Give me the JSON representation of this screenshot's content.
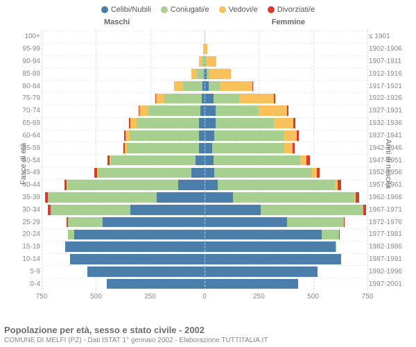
{
  "legend": [
    {
      "label": "Celibi/Nubili",
      "color": "#4b7eab"
    },
    {
      "label": "Coniugati/e",
      "color": "#a7cf8f"
    },
    {
      "label": "Vedovi/e",
      "color": "#f9c15b"
    },
    {
      "label": "Divorziati/e",
      "color": "#d83a2e"
    }
  ],
  "headers": {
    "left": "Maschi",
    "right": "Femmine"
  },
  "axis_labels": {
    "left": "Fasce di età",
    "right": "Anni di nascita"
  },
  "x_axis": {
    "max": 750,
    "ticks": [
      750,
      500,
      250,
      0,
      250,
      500,
      750
    ]
  },
  "colors": {
    "grid": "#e0e0e0",
    "background": "#ffffff",
    "center_line": "#cccccc"
  },
  "footer": {
    "title": "Popolazione per età, sesso e stato civile - 2002",
    "subtitle": "COMUNE DI MELFI (PZ) - Dati ISTAT 1° gennaio 2002 - Elaborazione TUTTITALIA.IT"
  },
  "rows": [
    {
      "age": "100+",
      "birth": "≤ 1901",
      "m": [
        0,
        0,
        1,
        0
      ],
      "f": [
        0,
        0,
        2,
        0
      ]
    },
    {
      "age": "95-99",
      "birth": "1902-1906",
      "m": [
        0,
        1,
        4,
        0
      ],
      "f": [
        0,
        0,
        12,
        0
      ]
    },
    {
      "age": "90-94",
      "birth": "1907-1911",
      "m": [
        1,
        8,
        18,
        0
      ],
      "f": [
        2,
        4,
        48,
        0
      ]
    },
    {
      "age": "85-89",
      "birth": "1912-1916",
      "m": [
        4,
        30,
        28,
        0
      ],
      "f": [
        10,
        12,
        100,
        0
      ]
    },
    {
      "age": "80-84",
      "birth": "1917-1921",
      "m": [
        10,
        90,
        40,
        0
      ],
      "f": [
        20,
        50,
        150,
        2
      ]
    },
    {
      "age": "75-79",
      "birth": "1922-1926",
      "m": [
        14,
        170,
        40,
        2
      ],
      "f": [
        40,
        120,
        160,
        4
      ]
    },
    {
      "age": "70-74",
      "birth": "1927-1931",
      "m": [
        20,
        240,
        40,
        4
      ],
      "f": [
        50,
        200,
        130,
        6
      ]
    },
    {
      "age": "65-69",
      "birth": "1932-1936",
      "m": [
        24,
        290,
        28,
        6
      ],
      "f": [
        50,
        270,
        90,
        8
      ]
    },
    {
      "age": "60-64",
      "birth": "1937-1941",
      "m": [
        24,
        320,
        20,
        6
      ],
      "f": [
        44,
        320,
        60,
        10
      ]
    },
    {
      "age": "55-59",
      "birth": "1942-1946",
      "m": [
        26,
        330,
        12,
        6
      ],
      "f": [
        36,
        330,
        40,
        10
      ]
    },
    {
      "age": "50-54",
      "birth": "1947-1951",
      "m": [
        40,
        390,
        8,
        8
      ],
      "f": [
        40,
        400,
        30,
        14
      ]
    },
    {
      "age": "45-49",
      "birth": "1952-1956",
      "m": [
        60,
        430,
        6,
        10
      ],
      "f": [
        46,
        450,
        20,
        14
      ]
    },
    {
      "age": "40-44",
      "birth": "1957-1961",
      "m": [
        120,
        510,
        4,
        12
      ],
      "f": [
        60,
        540,
        12,
        16
      ]
    },
    {
      "age": "35-39",
      "birth": "1962-1966",
      "m": [
        220,
        500,
        2,
        12
      ],
      "f": [
        130,
        560,
        6,
        16
      ]
    },
    {
      "age": "30-34",
      "birth": "1967-1971",
      "m": [
        340,
        370,
        0,
        10
      ],
      "f": [
        260,
        470,
        2,
        12
      ]
    },
    {
      "age": "25-29",
      "birth": "1972-1976",
      "m": [
        470,
        160,
        0,
        4
      ],
      "f": [
        380,
        260,
        0,
        6
      ]
    },
    {
      "age": "20-24",
      "birth": "1977-1981",
      "m": [
        600,
        30,
        0,
        0
      ],
      "f": [
        540,
        80,
        0,
        2
      ]
    },
    {
      "age": "15-19",
      "birth": "1982-1986",
      "m": [
        640,
        2,
        0,
        0
      ],
      "f": [
        602,
        4,
        0,
        0
      ]
    },
    {
      "age": "10-14",
      "birth": "1987-1991",
      "m": [
        620,
        0,
        0,
        0
      ],
      "f": [
        630,
        0,
        0,
        0
      ]
    },
    {
      "age": "5-9",
      "birth": "1992-1996",
      "m": [
        540,
        0,
        0,
        0
      ],
      "f": [
        520,
        0,
        0,
        0
      ]
    },
    {
      "age": "0-4",
      "birth": "1997-2001",
      "m": [
        450,
        0,
        0,
        0
      ],
      "f": [
        430,
        0,
        0,
        0
      ]
    }
  ]
}
